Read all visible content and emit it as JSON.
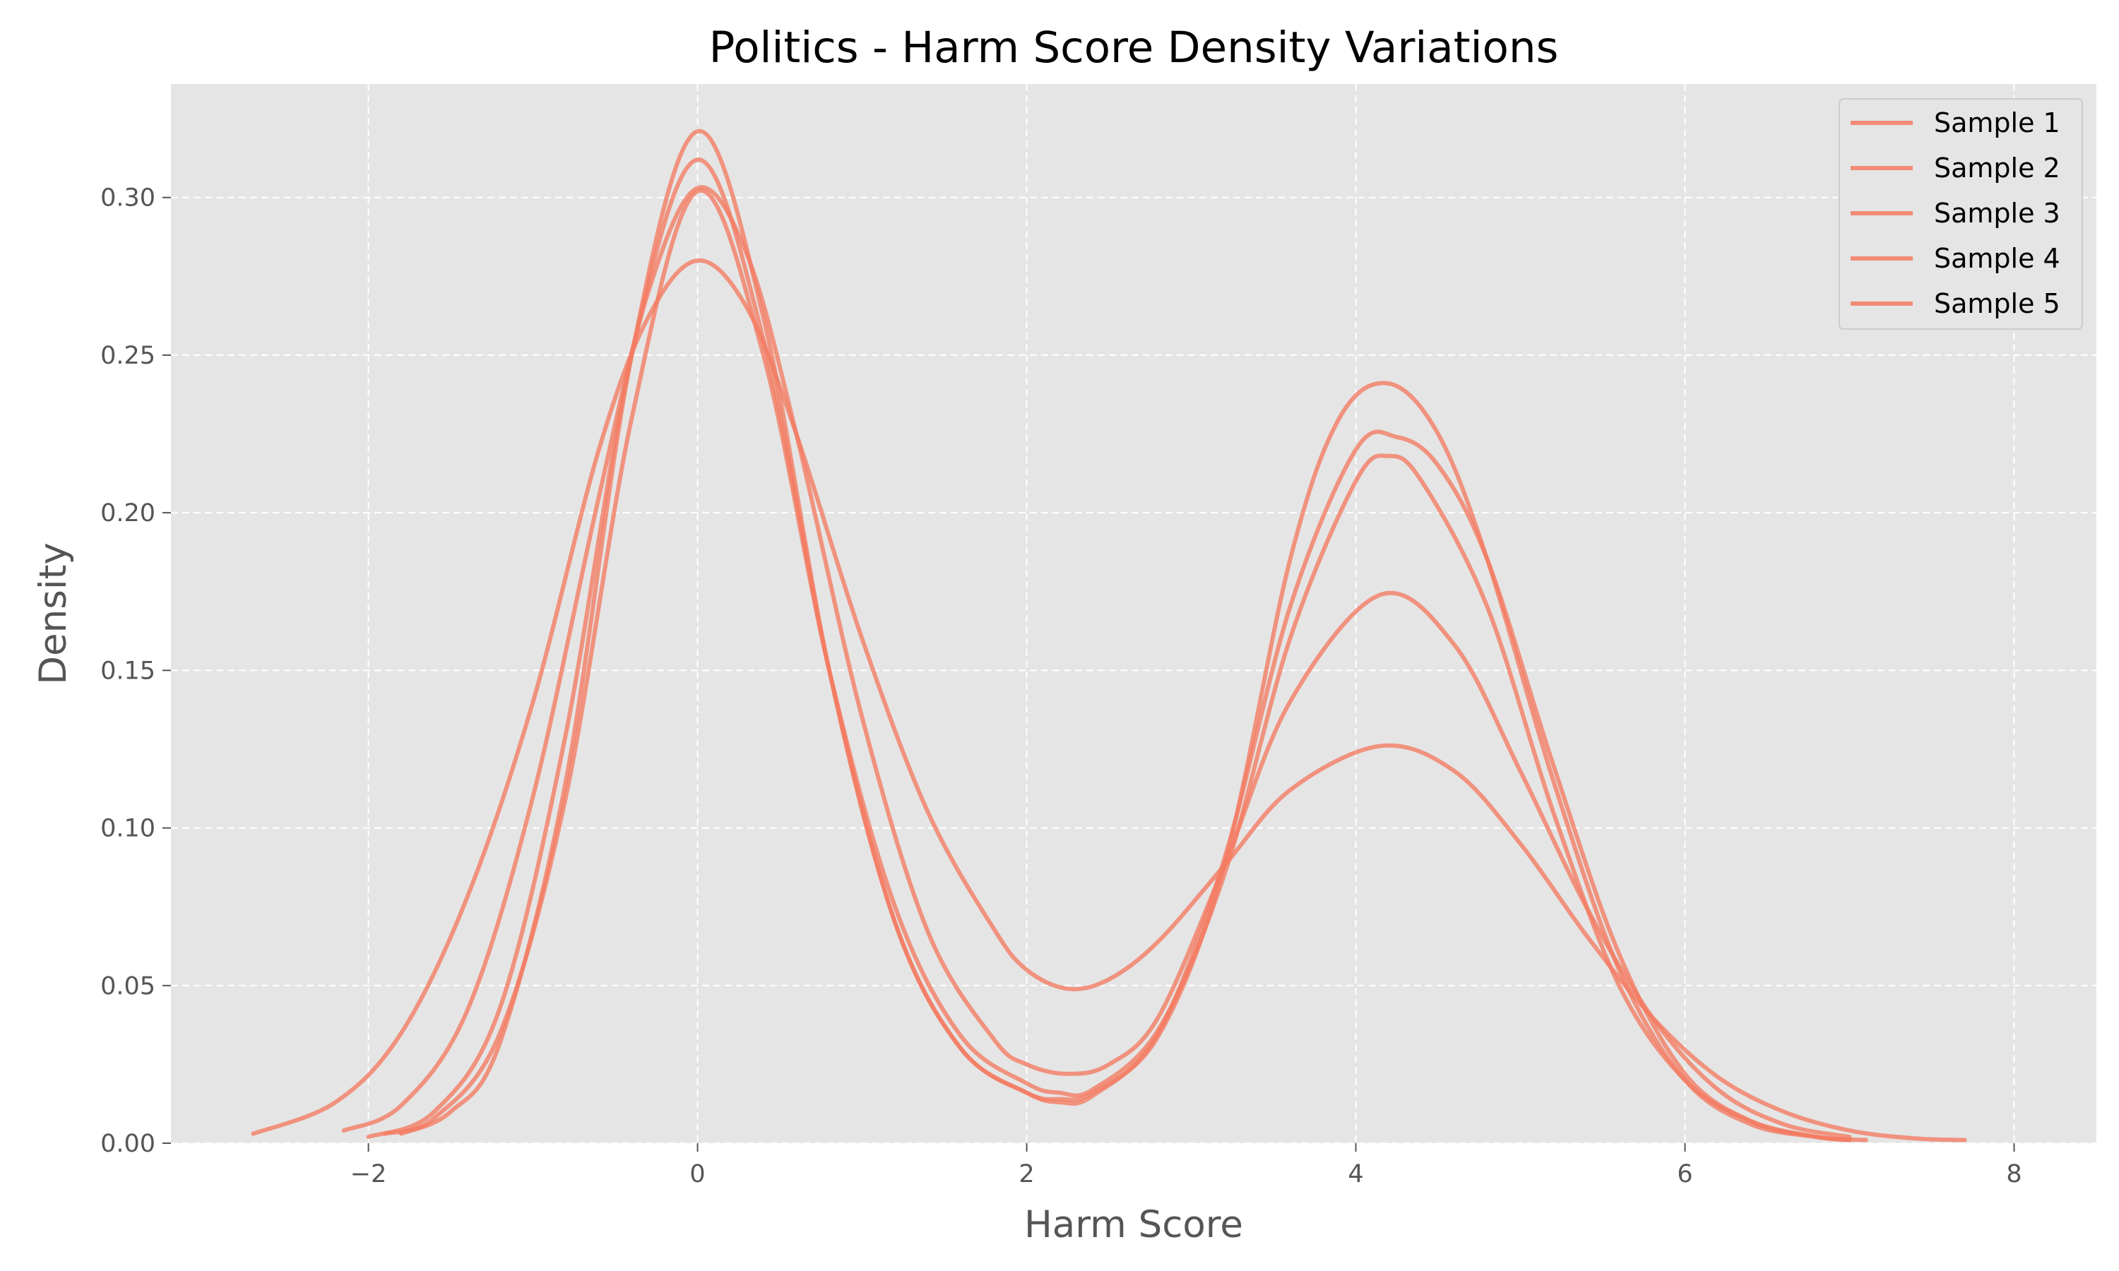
{
  "chart_data": {
    "type": "line",
    "title": "Politics - Harm Score Density Variations",
    "xlabel": "Harm Score",
    "ylabel": "Density",
    "xlim": [
      -3.2,
      8.5
    ],
    "ylim": [
      0.0,
      0.336
    ],
    "x_ticks": [
      -2,
      0,
      2,
      4,
      6,
      8
    ],
    "x_tick_labels": [
      "−2",
      "0",
      "2",
      "4",
      "6",
      "8"
    ],
    "y_ticks": [
      0.0,
      0.05,
      0.1,
      0.15,
      0.2,
      0.25,
      0.3
    ],
    "y_tick_labels": [
      "0.00",
      "0.05",
      "0.10",
      "0.15",
      "0.20",
      "0.25",
      "0.30"
    ],
    "grid": true,
    "legend_position": "top-right",
    "colors": {
      "series": "#F47B62",
      "plot_bg": "#E5E5E5",
      "grid": "#FFFFFF",
      "legend_bg": "#E5E5E5",
      "legend_border": "#CCCCCC"
    },
    "series": [
      {
        "name": "Sample 1",
        "x": [
          -1.9,
          -1.6,
          -1.2,
          -0.8,
          -0.4,
          0.0,
          0.4,
          0.8,
          1.2,
          1.6,
          2.0,
          2.2,
          2.4,
          2.8,
          3.2,
          3.6,
          4.0,
          4.2,
          4.4,
          4.8,
          5.2,
          5.6,
          6.0,
          6.4,
          6.8,
          7.0
        ],
        "y": [
          0.003,
          0.008,
          0.035,
          0.11,
          0.23,
          0.302,
          0.25,
          0.15,
          0.075,
          0.034,
          0.019,
          0.016,
          0.017,
          0.036,
          0.085,
          0.16,
          0.21,
          0.218,
          0.21,
          0.17,
          0.105,
          0.05,
          0.02,
          0.007,
          0.002,
          0.001
        ]
      },
      {
        "name": "Sample 2",
        "x": [
          -2.0,
          -1.6,
          -1.2,
          -0.8,
          -0.4,
          0.0,
          0.4,
          0.8,
          1.2,
          1.6,
          2.0,
          2.2,
          2.4,
          2.8,
          3.2,
          3.6,
          4.0,
          4.25,
          4.5,
          4.8,
          5.2,
          5.6,
          6.0,
          6.4,
          6.8,
          7.1
        ],
        "y": [
          0.002,
          0.01,
          0.043,
          0.13,
          0.25,
          0.312,
          0.255,
          0.15,
          0.07,
          0.03,
          0.016,
          0.013,
          0.015,
          0.035,
          0.09,
          0.17,
          0.22,
          0.224,
          0.215,
          0.185,
          0.12,
          0.06,
          0.022,
          0.007,
          0.002,
          0.001
        ]
      },
      {
        "name": "Sample 3",
        "x": [
          -2.7,
          -2.2,
          -1.8,
          -1.4,
          -1.0,
          -0.6,
          -0.3,
          0.0,
          0.3,
          0.6,
          1.0,
          1.4,
          1.8,
          2.0,
          2.25,
          2.5,
          2.8,
          3.2,
          3.6,
          4.15,
          4.6,
          5.0,
          5.4,
          5.8,
          6.2,
          6.6,
          7.0,
          7.4,
          7.7
        ],
        "y": [
          0.003,
          0.013,
          0.035,
          0.078,
          0.14,
          0.22,
          0.262,
          0.28,
          0.265,
          0.225,
          0.16,
          0.105,
          0.068,
          0.055,
          0.049,
          0.052,
          0.064,
          0.088,
          0.112,
          0.126,
          0.118,
          0.095,
          0.066,
          0.04,
          0.021,
          0.01,
          0.004,
          0.0015,
          0.001
        ]
      },
      {
        "name": "Sample 4",
        "x": [
          -2.15,
          -1.8,
          -1.4,
          -1.0,
          -0.6,
          -0.3,
          0.0,
          0.3,
          0.6,
          1.0,
          1.4,
          1.8,
          2.0,
          2.25,
          2.5,
          2.8,
          3.2,
          3.6,
          4.15,
          4.6,
          5.0,
          5.4,
          5.8,
          6.2,
          6.6,
          7.0
        ],
        "y": [
          0.004,
          0.012,
          0.042,
          0.11,
          0.205,
          0.27,
          0.303,
          0.282,
          0.225,
          0.135,
          0.067,
          0.033,
          0.025,
          0.022,
          0.025,
          0.04,
          0.088,
          0.14,
          0.174,
          0.158,
          0.118,
          0.075,
          0.04,
          0.017,
          0.006,
          0.002
        ]
      },
      {
        "name": "Sample 5",
        "x": [
          -1.8,
          -1.5,
          -1.2,
          -0.8,
          -0.4,
          0.0,
          0.4,
          0.8,
          1.2,
          1.6,
          2.0,
          2.2,
          2.4,
          2.8,
          3.2,
          3.6,
          3.9,
          4.2,
          4.5,
          4.8,
          5.2,
          5.6,
          6.0,
          6.4,
          6.8,
          7.0
        ],
        "y": [
          0.003,
          0.01,
          0.032,
          0.115,
          0.25,
          0.321,
          0.262,
          0.15,
          0.07,
          0.03,
          0.016,
          0.014,
          0.016,
          0.034,
          0.088,
          0.185,
          0.23,
          0.241,
          0.225,
          0.185,
          0.115,
          0.055,
          0.02,
          0.006,
          0.002,
          0.001
        ]
      }
    ]
  }
}
